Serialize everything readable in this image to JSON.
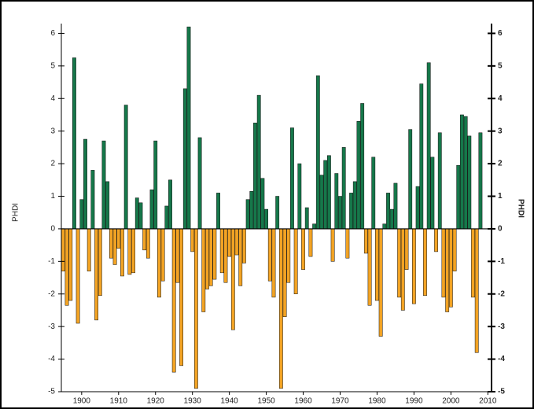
{
  "chart_data": {
    "type": "bar",
    "y_label": "PHDI",
    "y2_label": "PHDI",
    "x": [
      1895,
      1896,
      1897,
      1898,
      1899,
      1900,
      1901,
      1902,
      1903,
      1904,
      1905,
      1906,
      1907,
      1908,
      1909,
      1910,
      1911,
      1912,
      1913,
      1914,
      1915,
      1916,
      1917,
      1918,
      1919,
      1920,
      1921,
      1922,
      1923,
      1924,
      1925,
      1926,
      1927,
      1928,
      1929,
      1930,
      1931,
      1932,
      1933,
      1934,
      1935,
      1936,
      1937,
      1938,
      1939,
      1940,
      1941,
      1942,
      1943,
      1944,
      1945,
      1946,
      1947,
      1948,
      1949,
      1950,
      1951,
      1952,
      1953,
      1954,
      1955,
      1956,
      1957,
      1958,
      1959,
      1960,
      1961,
      1962,
      1963,
      1964,
      1965,
      1966,
      1967,
      1968,
      1969,
      1970,
      1971,
      1972,
      1973,
      1974,
      1975,
      1976,
      1977,
      1978,
      1979,
      1980,
      1981,
      1982,
      1983,
      1984,
      1985,
      1986,
      1987,
      1988,
      1989,
      1990,
      1991,
      1992,
      1993,
      1994,
      1995,
      1996,
      1997,
      1998,
      1999,
      2000,
      2001,
      2002,
      2003,
      2004,
      2005,
      2006,
      2007,
      2008
    ],
    "values": [
      -1.3,
      -2.35,
      -2.2,
      5.25,
      -2.9,
      0.9,
      2.75,
      -1.3,
      1.8,
      -2.8,
      -2.05,
      2.7,
      1.45,
      -0.9,
      -1.1,
      -0.6,
      -1.45,
      3.8,
      -1.4,
      -1.35,
      0.95,
      0.8,
      -0.65,
      -0.9,
      1.2,
      2.7,
      -2.1,
      -1.6,
      0.7,
      1.5,
      -4.4,
      -1.65,
      -4.2,
      4.3,
      6.2,
      -0.7,
      -4.9,
      2.8,
      -2.55,
      -1.85,
      -1.75,
      -1.55,
      1.1,
      -1.35,
      -1.65,
      -0.85,
      -3.1,
      -0.8,
      -1.75,
      -1.05,
      0.9,
      1.15,
      3.25,
      4.1,
      1.55,
      0.6,
      -1.6,
      -2.1,
      1.0,
      -4.9,
      -2.7,
      -1.65,
      3.1,
      -2.0,
      2.0,
      -1.25,
      0.65,
      -0.85,
      0.15,
      4.7,
      1.65,
      2.1,
      2.25,
      -1.0,
      1.7,
      1.0,
      2.5,
      -0.9,
      1.1,
      1.45,
      3.3,
      3.85,
      -0.75,
      -2.35,
      2.2,
      -2.2,
      -3.3,
      0.15,
      1.1,
      0.6,
      1.4,
      -2.1,
      -2.5,
      -1.25,
      3.05,
      -2.3,
      1.3,
      4.45,
      -2.05,
      5.1,
      2.2,
      -0.7,
      2.95,
      -2.1,
      -2.55,
      -2.4,
      -1.3,
      1.95,
      3.5,
      3.45,
      2.85,
      -2.1,
      -3.8,
      2.95
    ],
    "colors": {
      "positive": "#16774a",
      "negative": "#f2a324"
    },
    "xlim": [
      1894.5,
      2011
    ],
    "xticks": [
      1900,
      1910,
      1920,
      1930,
      1940,
      1950,
      1960,
      1970,
      1980,
      1990,
      2000,
      2010
    ],
    "ylim": [
      -5,
      6.3
    ],
    "yticks": [
      -5,
      -4,
      -3,
      -2,
      -1,
      0,
      1,
      2,
      3,
      4,
      5,
      6
    ],
    "y2lim": [
      -5,
      6.3
    ],
    "y2ticks": [
      -5,
      -4,
      -3,
      -2,
      -1,
      0,
      1,
      2,
      3,
      4,
      5,
      6
    ]
  }
}
